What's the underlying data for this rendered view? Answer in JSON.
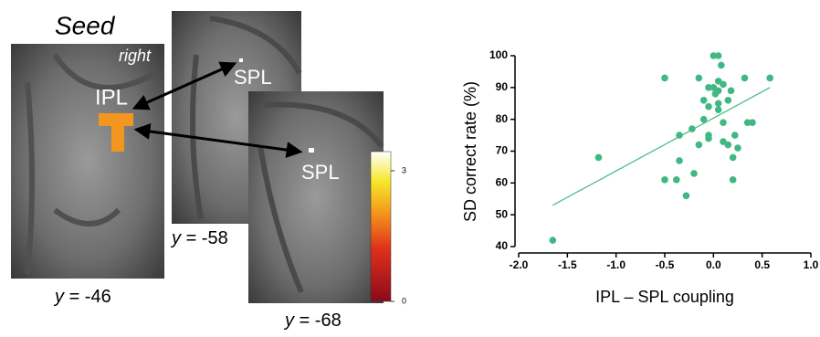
{
  "brain_panels": {
    "seed_title": "Seed",
    "hemisphere": "right",
    "seed_region": "IPL",
    "target_labels": [
      "SPL",
      "SPL"
    ],
    "slices": [
      {
        "axis": "y",
        "coord": "= -46"
      },
      {
        "axis": "y",
        "coord": "= -58"
      },
      {
        "axis": "y",
        "coord": "= -68"
      }
    ],
    "colorbar": {
      "lim": [
        0,
        3.44
      ],
      "ticks": [
        0,
        3
      ]
    }
  },
  "chart_data": {
    "type": "scatter",
    "xlabel": "IPL – SPL coupling",
    "ylabel": "SD correct rate (%)",
    "color": "#41b883",
    "x": [
      -1.65,
      -1.18,
      -0.5,
      -0.5,
      -0.38,
      -0.35,
      -0.35,
      -0.28,
      -0.2,
      -0.22,
      -0.15,
      -0.15,
      -0.1,
      -0.1,
      -0.05,
      -0.05,
      -0.05,
      0.0,
      0.05,
      0.0,
      0.02,
      0.05,
      0.05,
      0.05,
      0.08,
      0.1,
      0.1,
      0.1,
      0.15,
      0.15,
      0.18,
      0.2,
      0.2,
      0.22,
      0.25,
      0.32,
      0.35,
      0.4,
      0.58,
      -0.05,
      0.05
    ],
    "values": [
      42,
      68,
      93,
      61,
      61,
      75,
      67,
      56,
      63,
      77,
      93,
      72,
      86,
      80,
      90,
      75,
      74,
      100,
      100,
      90,
      88,
      85,
      89,
      92,
      97,
      91,
      73,
      79,
      86,
      72,
      89,
      61,
      68,
      75,
      71,
      93,
      79,
      79,
      93,
      84,
      83
    ],
    "trend_line": {
      "x": [
        -1.65,
        0.58
      ],
      "values": [
        53,
        90
      ]
    },
    "xlim": [
      -2,
      1
    ],
    "ylim": [
      40,
      100
    ],
    "xticks": [
      {
        "value": -2,
        "label": "-2.0"
      },
      -1.5,
      {
        "value": -1,
        "label": "-1.0"
      },
      -0.5,
      {
        "value": 0,
        "label": "0.0"
      },
      0.5,
      {
        "value": 1,
        "label": "1.0"
      }
    ],
    "yticks": [
      40,
      50,
      60,
      70,
      80,
      90,
      100
    ]
  }
}
